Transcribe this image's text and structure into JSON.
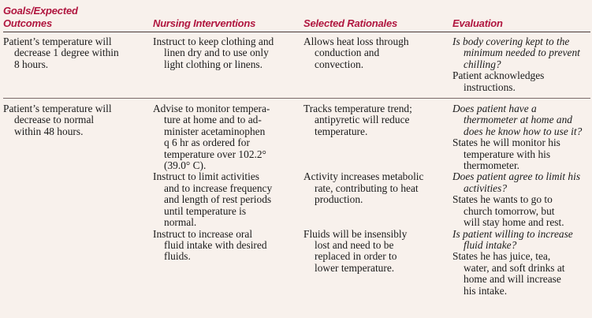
{
  "headers": {
    "goals": "Goals/Expected\nOutcomes",
    "interventions": "Nursing Interventions",
    "rationales": "Selected Rationales",
    "evaluation": "Evaluation"
  },
  "accent_color": "#b0163f",
  "rows": [
    {
      "goal": "Patient’s temperature will\ndecrease 1 degree within\n8 hours.",
      "items": [
        {
          "intervention": "Instruct to keep clothing and\nlinen dry and to use only\nlight clothing or linens.",
          "rationale": "Allows heat loss through\nconduction and\nconvection.",
          "eval_question": "Is body covering kept to the\nminimum needed to prevent\nchilling?",
          "eval_response": "Patient acknowledges\ninstructions."
        }
      ]
    },
    {
      "goal": "Patient’s temperature will\ndecrease to normal\nwithin 48 hours.",
      "items": [
        {
          "intervention": "Advise to monitor tempera-\nture at home and to ad-\nminister acetaminophen\nq 6 hr as ordered for\ntemperature over 102.2°\n(39.0° C).",
          "rationale": "Tracks temperature trend;\nantipyretic will reduce\ntemperature.",
          "eval_question": "Does patient have a\nthermometer at home and\ndoes he know how to use it?",
          "eval_response": "States he will monitor his\ntemperature with his\nthermometer."
        },
        {
          "intervention": "Instruct to limit activities\nand to increase frequency\nand length of rest periods\nuntil temperature is\nnormal.",
          "rationale": "Activity increases metabolic\nrate, contributing to heat\nproduction.",
          "eval_question": "Does patient agree to limit his\nactivities?",
          "eval_response": "States he wants to go to\nchurch tomorrow, but\nwill stay home and rest."
        },
        {
          "intervention": "Instruct to increase oral\nfluid intake with desired\nfluids.",
          "rationale": "Fluids will be insensibly\nlost and need to be\nreplaced in order to\nlower temperature.",
          "eval_question": "Is patient willing to increase\nfluid intake?",
          "eval_response": "States he has juice, tea,\nwater, and soft drinks at\nhome and will increase\nhis intake."
        }
      ]
    }
  ]
}
